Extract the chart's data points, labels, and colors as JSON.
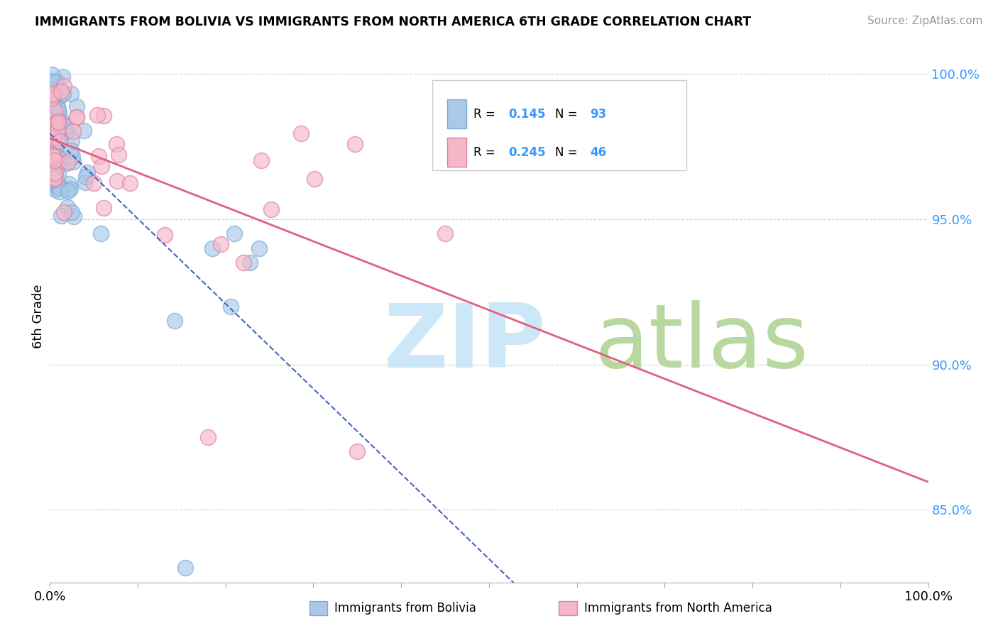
{
  "title": "IMMIGRANTS FROM BOLIVIA VS IMMIGRANTS FROM NORTH AMERICA 6TH GRADE CORRELATION CHART",
  "source": "Source: ZipAtlas.com",
  "ylabel": "6th Grade",
  "ytick_labels": [
    "100.0%",
    "95.0%",
    "90.0%",
    "85.0%"
  ],
  "ytick_values": [
    1.0,
    0.95,
    0.9,
    0.85
  ],
  "xlim": [
    0.0,
    1.0
  ],
  "ylim": [
    0.825,
    1.008
  ],
  "legend1_label": "Immigrants from Bolivia",
  "legend2_label": "Immigrants from North America",
  "R_bolivia": 0.145,
  "N_bolivia": 93,
  "R_northamerica": 0.245,
  "N_northamerica": 46,
  "bolivia_color": "#aac8e8",
  "bolivia_edge": "#7aaad4",
  "northamerica_color": "#f4b8c8",
  "northamerica_edge": "#e080a0",
  "trend_bolivia_color": "#4466bb",
  "trend_northamerica_color": "#e06080",
  "watermark_zip_color": "#cce8f8",
  "watermark_atlas_color": "#b8d8a0",
  "tick_color": "#3399ff",
  "grid_color": "#cccccc"
}
